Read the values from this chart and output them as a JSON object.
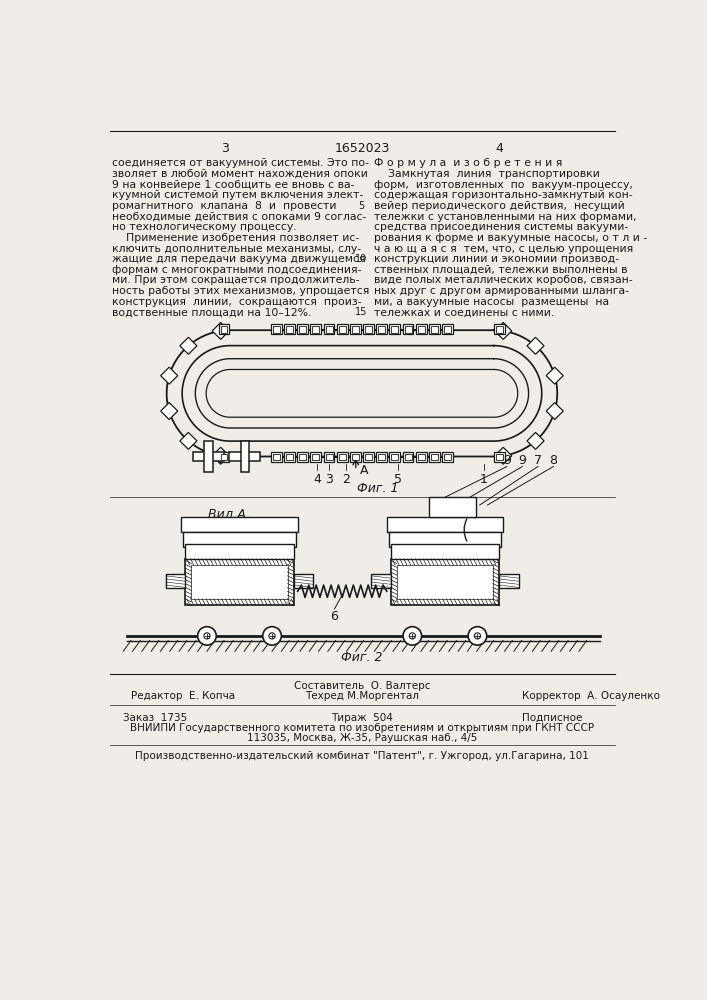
{
  "page_number_left": "3",
  "patent_number": "1652023",
  "page_number_right": "4",
  "left_column_text": [
    "соединяется от вакуумной системы. Это по-",
    "зволяет в любой момент нахождения опоки",
    "9 на конвейере 1 сообщить ее вновь с ва-",
    "куумной системой путем включения элект-",
    "ромагнитного  клапана  8  и  провести",
    "необходимые действия с опоками 9 соглас-",
    "но технологическому процессу.",
    "    Применение изобретения позволяет ис-",
    "ключить дополнительные механизмы, слу-",
    "жащие для передачи вакуума движущемся",
    "формам с многократными подсоединения-",
    "ми. При этом сокращается продолжитель-",
    "ность работы этих механизмов, упрощается",
    "конструкция  линии,  сокращаются  произ-",
    "водственные площади на 10–12%."
  ],
  "right_column_title": "Ф о р м у л а  и з о б р е т е н и я",
  "right_column_text": [
    "    Замкнутая  линия  транспортировки",
    "форм,  изготовленных  по  вакуум-процессу,",
    "содержащая горизонтально-замкнутый кон-",
    "вейер периодического действия,  несущий",
    "тележки с установленными на них формами,",
    "средства присоединения системы вакууми-",
    "рования к форме и вакуумные насосы, о т л и -",
    "ч а ю щ а я с я  тем, что, с целью упрощения",
    "конструкции линии и экономии производ-",
    "ственных площадей, тележки выполнены в",
    "виде полых металлических коробов, связан-",
    "ных друг с другом армированными шланга-",
    "ми, а вакуумные насосы  размещены  на",
    "тележках и соединены с ними."
  ],
  "fig1_caption": "Фиг. 1",
  "fig2_caption": "Фиг. 2",
  "view_label": "Вид А",
  "footer_editor": "Редактор  Е. Копча",
  "footer_compiler": "Составитель  О. Валтерс",
  "footer_tech": "Техред М.Моргентал",
  "footer_corrector": "Корректор  А. Осауленко",
  "footer_order": "Заказ  1735",
  "footer_print": "Тираж  504",
  "footer_subscription": "Подписное",
  "footer_vniipи": "ВНИИПИ Государственного комитета по изобретениям и открытиям при ГКНТ СССР",
  "footer_address": "113035, Москва, Ж-35, Раушская наб., 4/5",
  "footer_publisher": "Производственно-издательский комбинат \"Патент\", г. Ужгород, ул.Гагарина, 101",
  "bg_color": "#f0ede8",
  "text_color": "#1a1a1a"
}
